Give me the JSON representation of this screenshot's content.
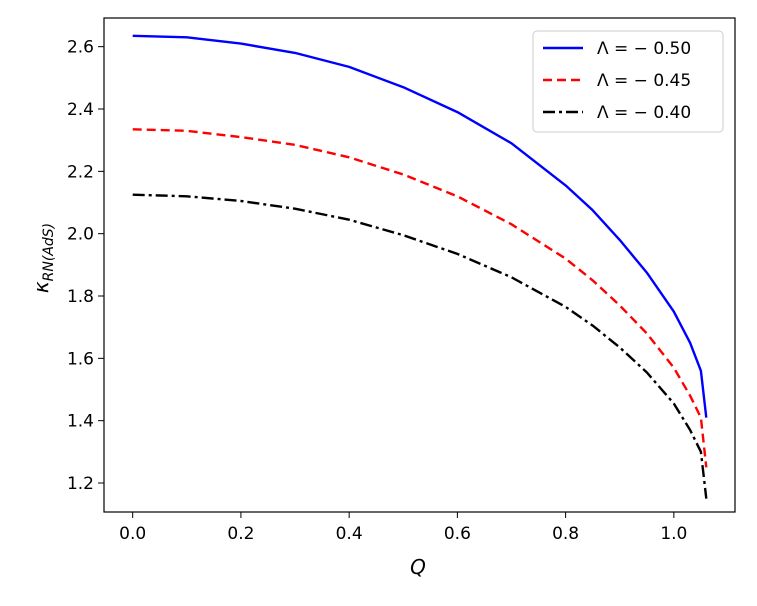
{
  "chart_data": {
    "type": "line",
    "title": "",
    "xlabel": "Q",
    "ylabel_main": "κ",
    "ylabel_sub": "RN(AdS)",
    "xlim": [
      -0.053,
      1.113
    ],
    "ylim": [
      1.107,
      2.692
    ],
    "xticks": [
      0.0,
      0.2,
      0.4,
      0.6,
      0.8,
      1.0
    ],
    "xtick_labels": [
      "0.0",
      "0.2",
      "0.4",
      "0.6",
      "0.8",
      "1.0"
    ],
    "yticks": [
      1.2,
      1.4,
      1.6,
      1.8,
      2.0,
      2.2,
      2.4,
      2.6
    ],
    "ytick_labels": [
      "1.2",
      "1.4",
      "1.6",
      "1.8",
      "2.0",
      "2.2",
      "2.4",
      "2.6"
    ],
    "grid": false,
    "legend_position": "top-right",
    "series": [
      {
        "name": "Λ = − 0.50",
        "color": "#0000ff",
        "style": "solid",
        "x": [
          0.0,
          0.1,
          0.2,
          0.3,
          0.4,
          0.5,
          0.6,
          0.7,
          0.8,
          0.85,
          0.9,
          0.95,
          1.0,
          1.03,
          1.05,
          1.06
        ],
        "y": [
          2.635,
          2.63,
          2.61,
          2.58,
          2.535,
          2.47,
          2.39,
          2.29,
          2.155,
          2.075,
          1.98,
          1.875,
          1.75,
          1.65,
          1.56,
          1.41
        ]
      },
      {
        "name": "Λ = − 0.45",
        "color": "#ff0000",
        "style": "dashed",
        "x": [
          0.0,
          0.1,
          0.2,
          0.3,
          0.4,
          0.5,
          0.6,
          0.7,
          0.8,
          0.85,
          0.9,
          0.95,
          1.0,
          1.03,
          1.05,
          1.06
        ],
        "y": [
          2.335,
          2.33,
          2.31,
          2.285,
          2.245,
          2.19,
          2.12,
          2.03,
          1.92,
          1.85,
          1.77,
          1.68,
          1.57,
          1.48,
          1.41,
          1.25
        ]
      },
      {
        "name": "Λ = − 0.40",
        "color": "#000000",
        "style": "dashdot",
        "x": [
          0.0,
          0.1,
          0.2,
          0.3,
          0.4,
          0.5,
          0.6,
          0.7,
          0.8,
          0.85,
          0.9,
          0.95,
          1.0,
          1.03,
          1.05,
          1.06
        ],
        "y": [
          2.125,
          2.12,
          2.105,
          2.08,
          2.045,
          1.995,
          1.935,
          1.86,
          1.765,
          1.705,
          1.635,
          1.555,
          1.455,
          1.37,
          1.3,
          1.15
        ]
      }
    ]
  }
}
